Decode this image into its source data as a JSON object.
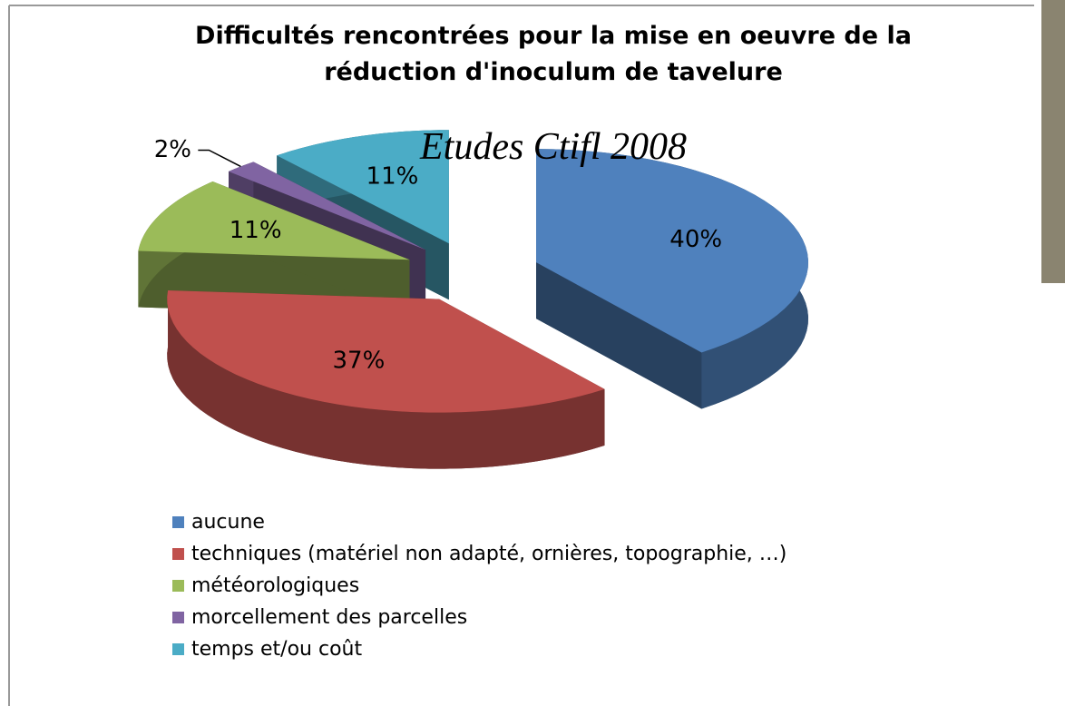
{
  "chart_data": {
    "type": "pie",
    "title": "Difficultés rencontrées pour la mise en oeuvre de la réduction d'inoculum de tavelure",
    "subtitle": "Etudes Ctifl 2008",
    "categories": [
      "aucune",
      "techniques (matériel non adapté,  ornières, topographie, …)",
      "météorologiques",
      "morcellement des parcelles",
      "temps et/ou coût"
    ],
    "values": [
      40,
      37,
      11,
      2,
      11
    ],
    "value_labels": [
      "40%",
      "37%",
      "11%",
      "2%",
      "11%"
    ],
    "colors": [
      "#4f81bd",
      "#c0504d",
      "#9bbb59",
      "#8064a2",
      "#4bacc6"
    ]
  }
}
